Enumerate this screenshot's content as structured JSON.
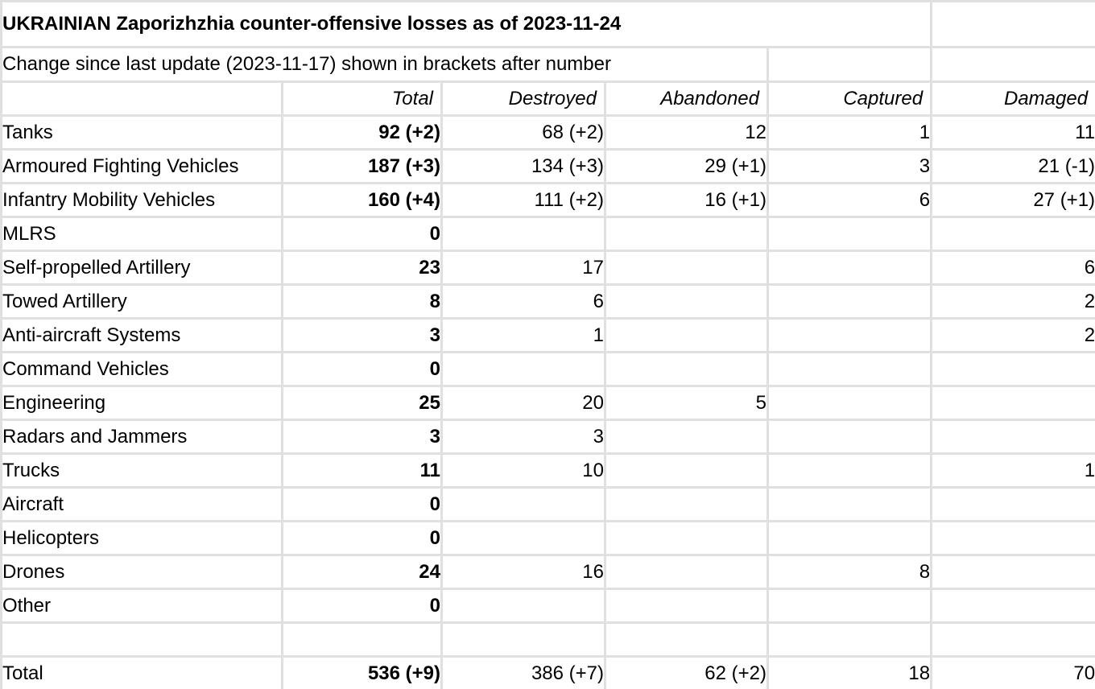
{
  "title": "UKRAINIAN Zaporizhzhia counter-offensive losses as of 2023-11-24",
  "subtitle": "Change since last update (2023-11-17) shown in brackets after number",
  "columns": [
    "Total",
    "Destroyed",
    "Abandoned",
    "Captured",
    "Damaged"
  ],
  "rows": [
    {
      "label": "Tanks",
      "values": [
        "92 (+2)",
        "68 (+2)",
        "12",
        "1",
        "11"
      ]
    },
    {
      "label": "Armoured Fighting Vehicles",
      "values": [
        "187 (+3)",
        "134 (+3)",
        "29 (+1)",
        "3",
        "21 (-1)"
      ]
    },
    {
      "label": "Infantry Mobility Vehicles",
      "values": [
        "160 (+4)",
        "111 (+2)",
        "16 (+1)",
        "6",
        "27 (+1)"
      ]
    },
    {
      "label": "MLRS",
      "values": [
        "0",
        "",
        "",
        "",
        ""
      ]
    },
    {
      "label": "Self-propelled Artillery",
      "values": [
        "23",
        "17",
        "",
        "",
        "6"
      ]
    },
    {
      "label": "Towed Artillery",
      "values": [
        "8",
        "6",
        "",
        "",
        "2"
      ]
    },
    {
      "label": "Anti-aircraft Systems",
      "values": [
        "3",
        "1",
        "",
        "",
        "2"
      ]
    },
    {
      "label": "Command Vehicles",
      "values": [
        "0",
        "",
        "",
        "",
        ""
      ]
    },
    {
      "label": "Engineering",
      "values": [
        "25",
        "20",
        "5",
        "",
        ""
      ]
    },
    {
      "label": "Radars and Jammers",
      "values": [
        "3",
        "3",
        "",
        "",
        ""
      ]
    },
    {
      "label": "Trucks",
      "values": [
        "11",
        "10",
        "",
        "",
        "1"
      ]
    },
    {
      "label": "Aircraft",
      "values": [
        "0",
        "",
        "",
        "",
        ""
      ]
    },
    {
      "label": "Helicopters",
      "values": [
        "0",
        "",
        "",
        "",
        ""
      ]
    },
    {
      "label": "Drones",
      "values": [
        "24",
        "16",
        "",
        "8",
        ""
      ]
    },
    {
      "label": "Other",
      "values": [
        "0",
        "",
        "",
        "",
        ""
      ]
    },
    {
      "label": "",
      "values": [
        "",
        "",
        "",
        "",
        ""
      ]
    },
    {
      "label": "Total",
      "values": [
        "536 (+9)",
        "386 (+7)",
        "62 (+2)",
        "18",
        "70"
      ]
    }
  ],
  "colors": {
    "gridline": "#e0e0e0",
    "text": "#000000",
    "background": "#ffffff"
  }
}
